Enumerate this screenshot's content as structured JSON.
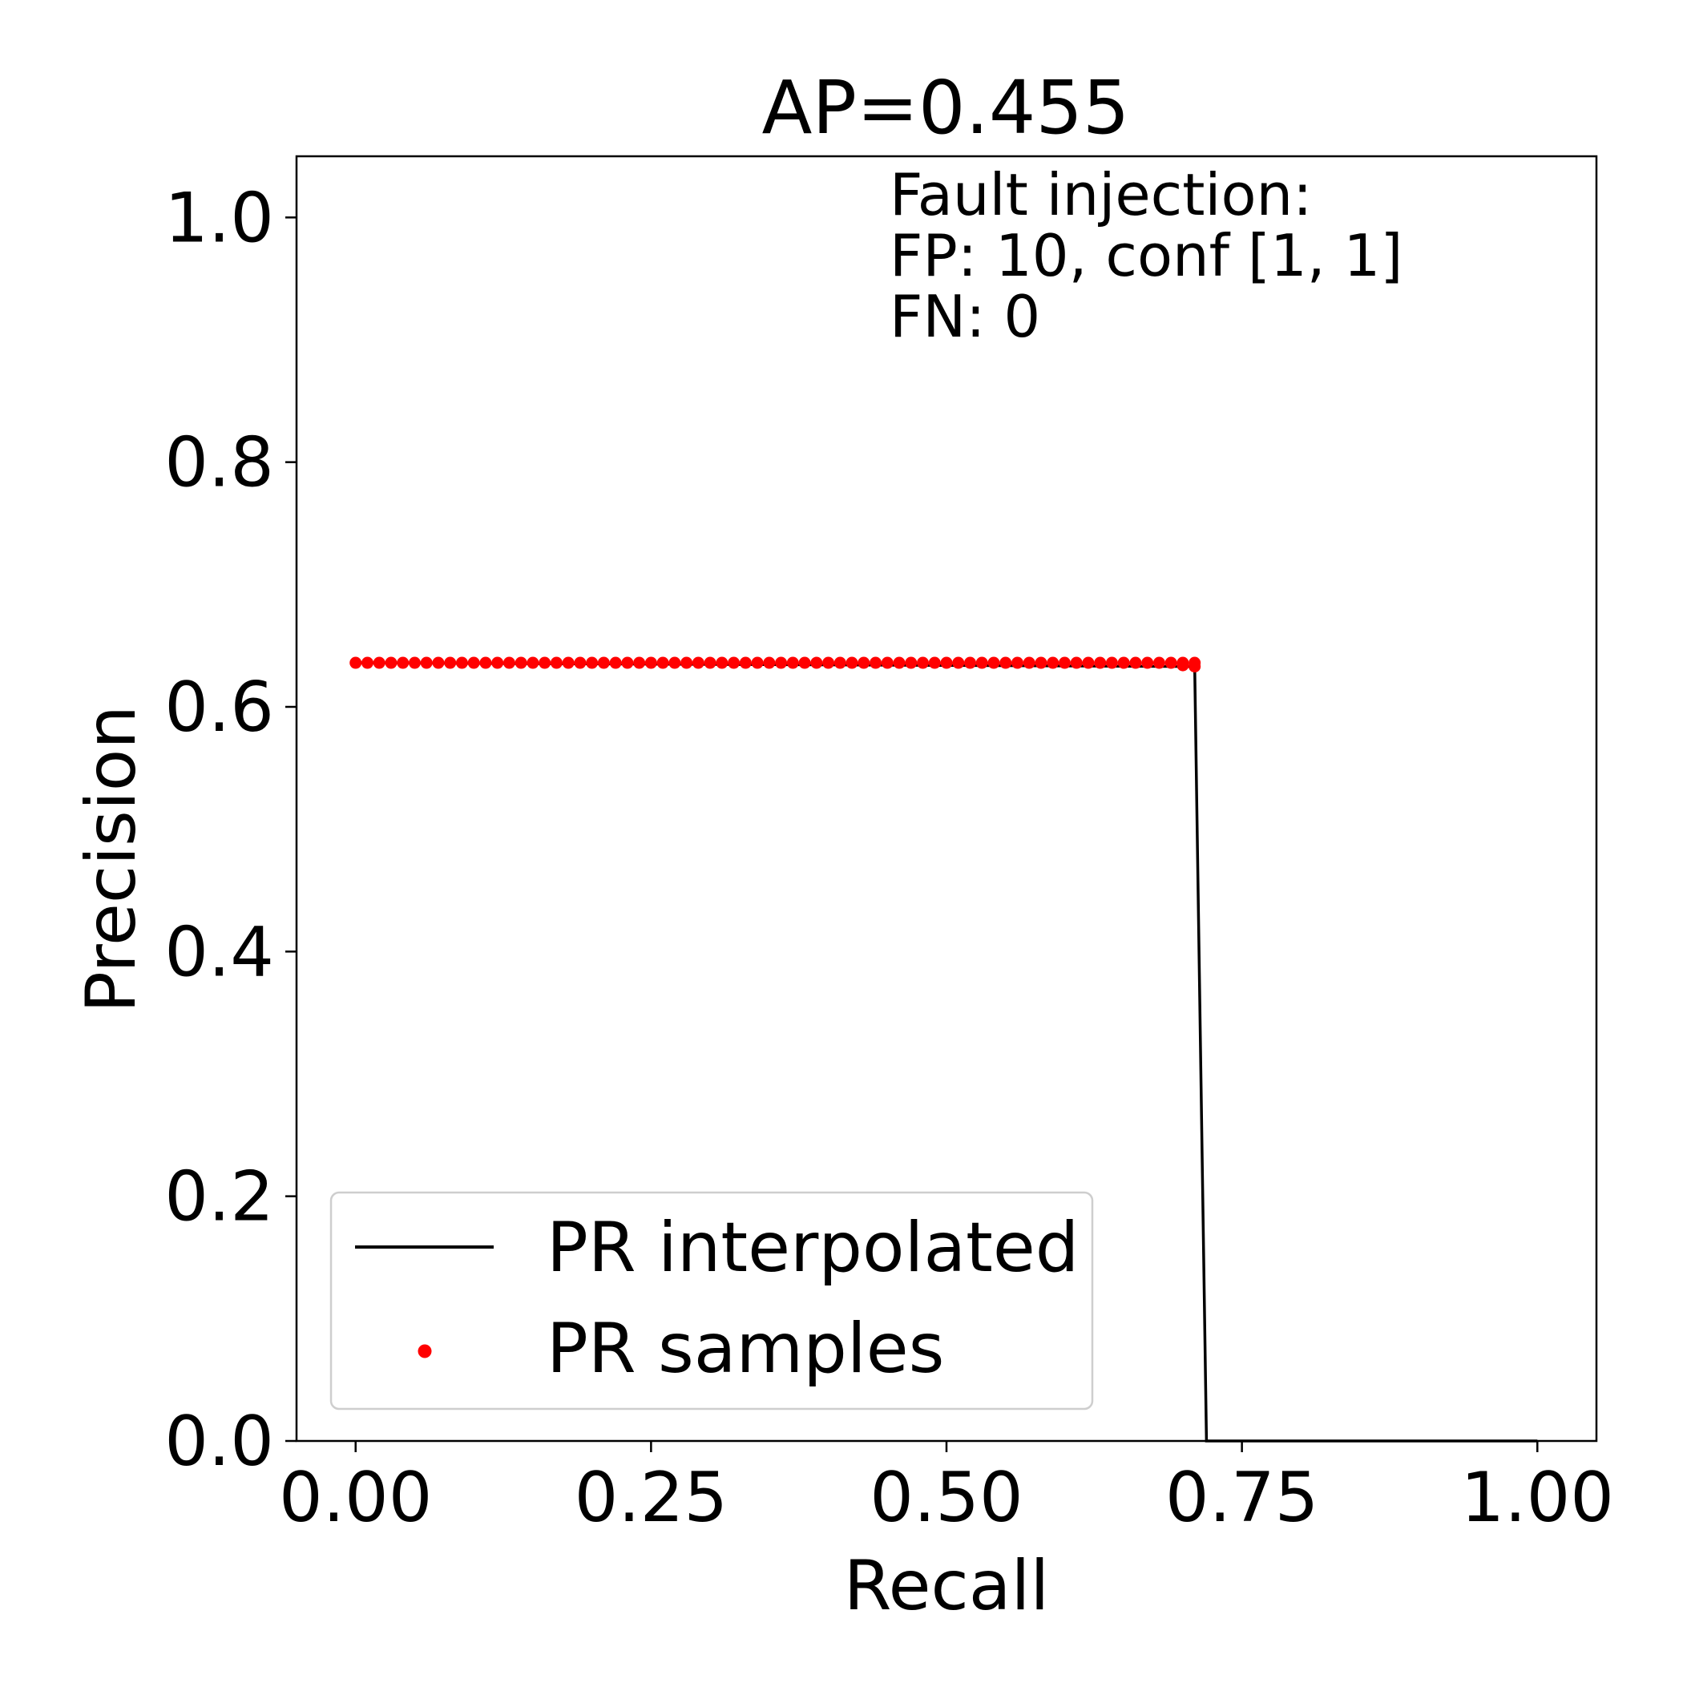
{
  "chart_data": {
    "type": "line",
    "title": "AP=0.455",
    "xlabel": "Recall",
    "ylabel": "Precision",
    "xlim": [
      -0.05,
      1.05
    ],
    "ylim": [
      0.0,
      1.05
    ],
    "x_ticks": [
      0.0,
      0.25,
      0.5,
      0.75,
      1.0
    ],
    "x_tick_labels": [
      "0.00",
      "0.25",
      "0.50",
      "0.75",
      "1.00"
    ],
    "y_ticks": [
      0.0,
      0.2,
      0.4,
      0.6,
      0.8,
      1.0
    ],
    "y_tick_labels": [
      "0.0",
      "0.2",
      "0.4",
      "0.6",
      "0.8",
      "1.0"
    ],
    "grid": false,
    "annotation": {
      "lines": [
        "Fault injection:",
        "FP: 10, conf [1, 1]",
        "FN: 0"
      ]
    },
    "legend": {
      "placement": "lower-left",
      "entries": [
        {
          "label": "PR interpolated",
          "marker": "line",
          "color": "#000000"
        },
        {
          "label": "PR samples",
          "marker": "dot",
          "color": "#ff0000"
        }
      ]
    },
    "series": [
      {
        "name": "PR interpolated",
        "kind": "line",
        "color": "#000000",
        "x": [
          0.0,
          0.71,
          0.72,
          1.0
        ],
        "y": [
          0.636,
          0.633,
          0.0,
          0.0
        ]
      },
      {
        "name": "PR samples",
        "kind": "scatter",
        "color": "#ff0000",
        "x_start": 0.0,
        "x_end": 0.71,
        "count": 72,
        "y": 0.636,
        "tail": [
          [
            0.7,
            0.634
          ],
          [
            0.71,
            0.633
          ]
        ]
      }
    ]
  }
}
